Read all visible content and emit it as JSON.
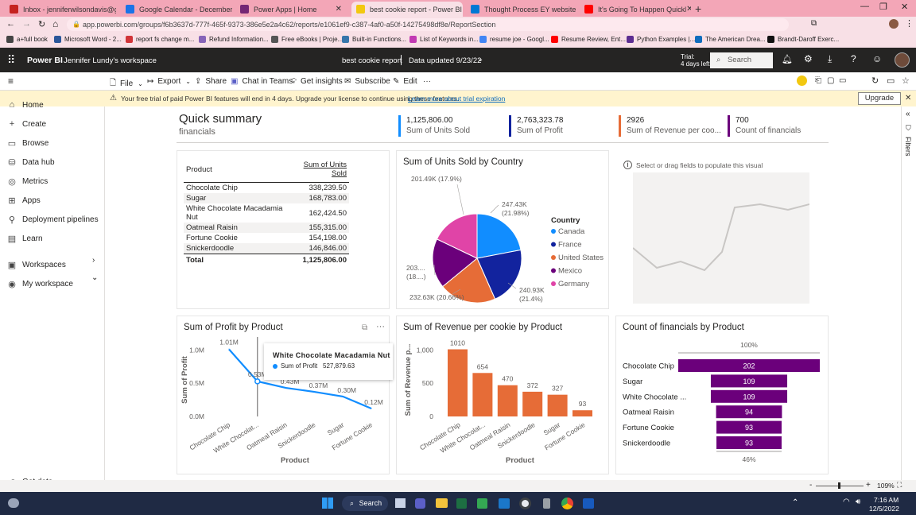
{
  "browser": {
    "tabs": [
      {
        "label": "Inbox - jenniferwilsondavis@gm",
        "color": "#c5221f"
      },
      {
        "label": "Google Calendar - December 20",
        "color": "#1a73e8"
      },
      {
        "label": "Power Apps | Home",
        "color": "#742774"
      },
      {
        "label": "best cookie report - Power BI",
        "color": "#f2c811"
      },
      {
        "label": "Thought Process EY website - Wi",
        "color": "#0078d4"
      },
      {
        "label": "It's Going To Happen Quickl",
        "color": "#ff0000"
      }
    ],
    "url": "app.powerbi.com/groups/f6b3637d-777f-465f-9373-386e5e2a4c62/reports/e1061ef9-c387-4af0-a50f-14275498df8e/ReportSection",
    "bookmarks": [
      {
        "label": "a+full book",
        "color": "#444"
      },
      {
        "label": "Microsoft Word - 2...",
        "color": "#2b579a"
      },
      {
        "label": "report fs change m...",
        "color": "#d13438"
      },
      {
        "label": "Refund Information...",
        "color": "#8764b8"
      },
      {
        "label": "Free eBooks | Proje...",
        "color": "#555"
      },
      {
        "label": "Built-in Functions...",
        "color": "#3776ab"
      },
      {
        "label": "List of Keywords in...",
        "color": "#c239b3"
      },
      {
        "label": "resume joe - Googl...",
        "color": "#4285f4"
      },
      {
        "label": "Resume Review, Ent...",
        "color": "#ff0000"
      },
      {
        "label": "Python Examples |...",
        "color": "#5c2d91"
      },
      {
        "label": "The American Drea...",
        "color": "#0f6cbd"
      },
      {
        "label": "Brandt-Daroff Exerc...",
        "color": "#111"
      }
    ]
  },
  "header": {
    "app": "Power BI",
    "workspace": "Jennifer Lundy's workspace",
    "report": "best cookie report",
    "updated": "Data updated 9/23/22",
    "trial_line1": "Trial:",
    "trial_line2": "4 days left",
    "search_placeholder": "Search"
  },
  "toolbar": {
    "file": "File",
    "export": "Export",
    "share": "Share",
    "chat": "Chat in Teams",
    "insights": "Get insights",
    "subscribe": "Subscribe",
    "edit": "Edit",
    "more": "···"
  },
  "trial_banner": {
    "text": "Your free trial of paid Power BI features will end in 4 days. Upgrade your license to continue using these features.",
    "link": "Learn more about trial expiration",
    "button": "Upgrade"
  },
  "sidebar": {
    "items": [
      {
        "label": "Home",
        "icon": "⌂"
      },
      {
        "label": "Create",
        "icon": "+"
      },
      {
        "label": "Browse",
        "icon": "▭"
      },
      {
        "label": "Data hub",
        "icon": "⛁"
      },
      {
        "label": "Metrics",
        "icon": "◎"
      },
      {
        "label": "Apps",
        "icon": "⊞"
      },
      {
        "label": "Deployment pipelines",
        "icon": "⚲"
      },
      {
        "label": "Learn",
        "icon": "▤"
      },
      {
        "label": "Workspaces",
        "icon": "▣"
      },
      {
        "label": "My workspace",
        "icon": "◉"
      }
    ],
    "get_data": "Get data"
  },
  "summary": {
    "title": "Quick summary",
    "subtitle": "financials"
  },
  "kpis": [
    {
      "value": "1,125,806.00",
      "label": "Sum of Units Sold",
      "color": "#118dff"
    },
    {
      "value": "2,763,323.78",
      "label": "Sum of Profit",
      "color": "#12239e"
    },
    {
      "value": "2926",
      "label": "Sum of Revenue per coo...",
      "color": "#e66c37"
    },
    {
      "value": "700",
      "label": "Count of financials",
      "color": "#6b007b"
    }
  ],
  "table": {
    "headers": [
      "Product",
      "Sum of Units Sold"
    ],
    "rows": [
      [
        "Chocolate Chip",
        "338,239.50"
      ],
      [
        "Sugar",
        "168,783.00"
      ],
      [
        "White Chocolate Macadamia Nut",
        "162,424.50"
      ],
      [
        "Oatmeal Raisin",
        "155,315.00"
      ],
      [
        "Fortune Cookie",
        "154,198.00"
      ],
      [
        "Snickerdoodle",
        "146,846.00"
      ]
    ],
    "total": [
      "Total",
      "1,125,806.00"
    ]
  },
  "empty_visual": {
    "hint": "Select or drag fields to populate this visual"
  },
  "pie": {
    "title": "Sum of Units Sold by Country",
    "legend_title": "Country",
    "labels": [
      {
        "l1": "247.43K",
        "l2": "(21.98%)"
      },
      {
        "l1": "240.93K",
        "l2": "(21.4%)"
      },
      {
        "l1": "232.63K (20.66%)",
        "l2": ""
      },
      {
        "l1": "203....",
        "l2": "(18....)"
      },
      {
        "l1": "201.49K (17.9%)",
        "l2": ""
      }
    ]
  },
  "line": {
    "title": "Sum of Profit by Product",
    "point_labels": [
      "1.01M",
      "0.53M",
      "0.43M",
      "0.37M",
      "0.30M",
      "0.12M"
    ],
    "tooltip_title": "White Chocolate Macadamia Nut",
    "tooltip_label": "Sum of Profit",
    "tooltip_value": "527,879.63"
  },
  "bar": {
    "title": "Sum of Revenue per cookie by Product"
  },
  "funnel": {
    "title": "Count of financials by Product",
    "top_pct": "100%",
    "bottom_pct": "46%"
  },
  "status": {
    "zoom": "109%"
  },
  "taskbar": {
    "search": "Search",
    "time": "7:16 AM",
    "date": "12/5/2022"
  },
  "chart_data": [
    {
      "type": "pie",
      "title": "Sum of Units Sold by Country",
      "legend": [
        "Canada",
        "France",
        "United States",
        "Mexico",
        "Germany"
      ],
      "colors": [
        "#118dff",
        "#12239e",
        "#e66c37",
        "#6b007b",
        "#e044a7"
      ],
      "values": [
        247430,
        240930,
        232630,
        203000,
        201490
      ]
    },
    {
      "type": "line",
      "title": "Sum of Profit by Product",
      "xlabel": "Product",
      "ylabel": "Sum of Profit",
      "categories": [
        "Chocolate Chip",
        "White Chocolat...",
        "Oatmeal Raisin",
        "Snickerdoodle",
        "Sugar",
        "Fortune Cookie"
      ],
      "values": [
        1010000,
        527879.63,
        430000,
        370000,
        300000,
        120000
      ],
      "yticks": [
        "0.0M",
        "0.5M",
        "1.0M"
      ],
      "ylim": [
        0,
        1100000
      ],
      "color": "#118dff"
    },
    {
      "type": "bar",
      "title": "Sum of Revenue per cookie by Product",
      "xlabel": "Product",
      "ylabel": "Sum of Revenue p...",
      "categories": [
        "Chocolate Chip",
        "White Chocolat...",
        "Oatmeal Raisin",
        "Snickerdoodle",
        "Sugar",
        "Fortune Cookie"
      ],
      "values": [
        1010,
        654,
        470,
        372,
        327,
        93
      ],
      "yticks": [
        "0",
        "500",
        "1,000"
      ],
      "ylim": [
        0,
        1100
      ],
      "color": "#e66c37"
    },
    {
      "type": "bar",
      "title": "Count of financials by Product",
      "categories": [
        "Chocolate Chip",
        "Sugar",
        "White Chocolate ...",
        "Oatmeal Raisin",
        "Fortune Cookie",
        "Snickerdoodle"
      ],
      "values": [
        202,
        109,
        109,
        94,
        93,
        93
      ],
      "color": "#6b007b"
    }
  ]
}
